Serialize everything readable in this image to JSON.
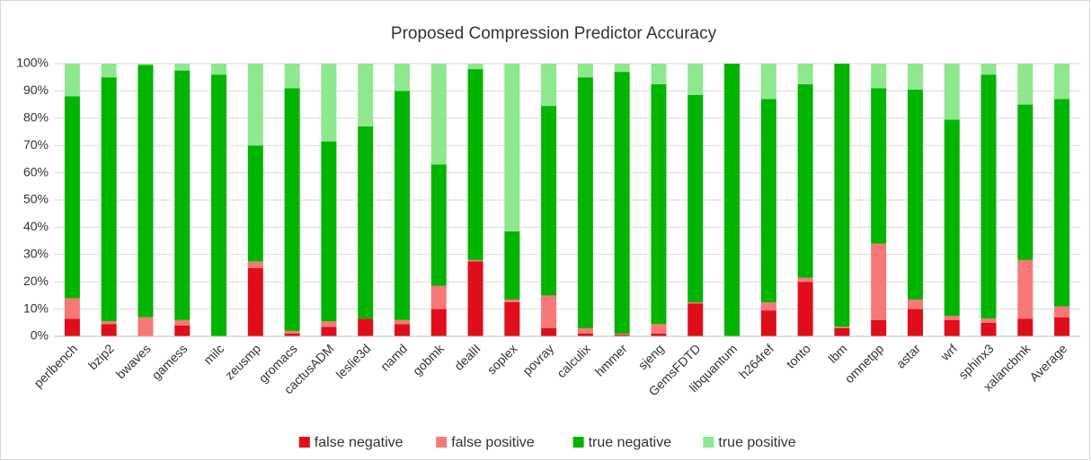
{
  "chart_data": {
    "type": "stacked_bar",
    "title": "Proposed Compression Predictor Accuracy",
    "categories": [
      "perlbench",
      "bzip2",
      "bwaves",
      "gamess",
      "milc",
      "zeusmp",
      "gromacs",
      "cactusADM",
      "leslie3d",
      "namd",
      "gobmk",
      "dealII",
      "soplex",
      "povray",
      "calculix",
      "hmmer",
      "sjeng",
      "GemsFDTD",
      "libquantum",
      "h264ref",
      "tonto",
      "lbm",
      "omnetpp",
      "astar",
      "wrf",
      "sphinx3",
      "xalancbmk",
      "Average"
    ],
    "series": [
      {
        "name": "false negative",
        "color": "#e00d1b",
        "values": [
          6.5,
          4.5,
          0,
          4,
          0,
          25,
          1,
          3.5,
          6.5,
          4.5,
          10,
          27.5,
          12.5,
          3,
          1,
          0.5,
          1,
          12,
          0,
          9.5,
          20,
          3,
          6,
          10,
          6,
          5,
          6.5,
          7
        ]
      },
      {
        "name": "false positive",
        "color": "#f87878",
        "values": [
          7.5,
          1,
          7,
          2,
          0,
          2.5,
          1,
          2,
          0,
          1.5,
          8.5,
          0.5,
          1,
          12,
          2,
          0.5,
          3.5,
          0.5,
          0,
          3,
          1.5,
          0.5,
          28,
          3.5,
          1.5,
          1.5,
          21.5,
          4
        ]
      },
      {
        "name": "true negative",
        "color": "#00b400",
        "values": [
          74,
          89.5,
          92.5,
          91.5,
          96,
          42.5,
          89,
          66,
          70.5,
          84,
          44.5,
          70,
          25,
          69.5,
          92,
          96,
          88,
          76,
          100,
          74.5,
          71,
          96.5,
          57,
          77,
          72,
          89.5,
          57,
          76
        ]
      },
      {
        "name": "true positive",
        "color": "#8ee88e",
        "values": [
          12,
          5,
          0.5,
          2.5,
          4,
          30,
          9,
          28.5,
          23,
          10,
          37,
          2,
          61.5,
          15.5,
          5,
          3,
          7.5,
          11.5,
          0,
          13,
          7.5,
          0,
          9,
          9.5,
          20.5,
          4,
          15,
          13
        ]
      }
    ],
    "ylim": [
      0,
      100
    ],
    "yticks": [
      {
        "value": 0,
        "label": "0%"
      },
      {
        "value": 10,
        "label": "10%"
      },
      {
        "value": 20,
        "label": "20%"
      },
      {
        "value": 30,
        "label": "30%"
      },
      {
        "value": 40,
        "label": "40%"
      },
      {
        "value": 50,
        "label": "50%"
      },
      {
        "value": 60,
        "label": "60%"
      },
      {
        "value": 70,
        "label": "70%"
      },
      {
        "value": 80,
        "label": "80%"
      },
      {
        "value": 90,
        "label": "90%"
      },
      {
        "value": 100,
        "label": "100%"
      }
    ],
    "grid": true,
    "legend": "bottom"
  }
}
